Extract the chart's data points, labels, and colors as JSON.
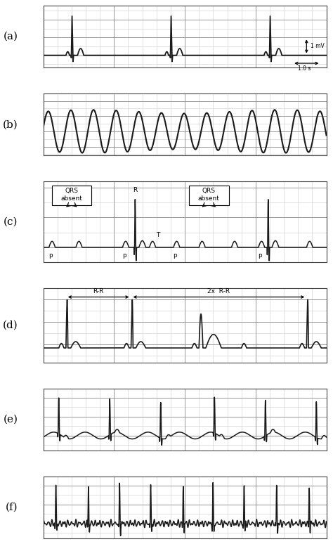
{
  "line_color": "#1a1a1a",
  "labels": [
    "(a)",
    "(b)",
    "(c)",
    "(d)",
    "(e)",
    "(f)"
  ],
  "fig_width": 4.74,
  "fig_height": 7.74,
  "minor_grid_color": "#cccccc",
  "major_grid_color": "#999999",
  "panel_bg": "#ffffff"
}
